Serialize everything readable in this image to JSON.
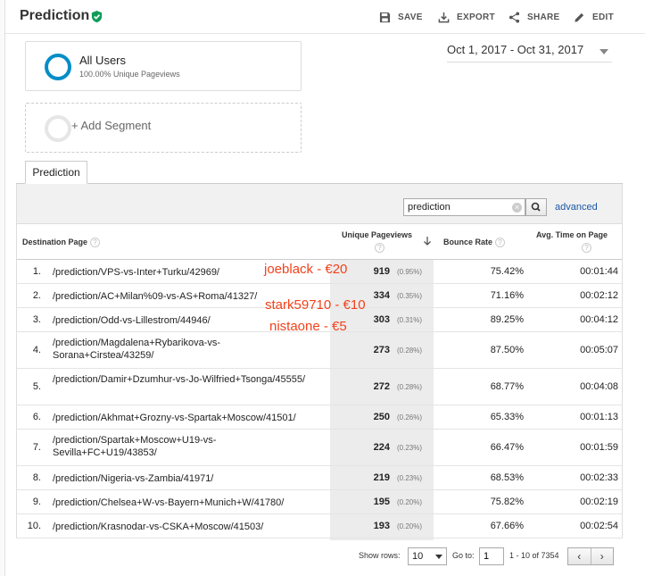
{
  "header": {
    "title": "Prediction",
    "actions": [
      {
        "label": "SAVE",
        "icon": "save-icon"
      },
      {
        "label": "EXPORT",
        "icon": "export-icon"
      },
      {
        "label": "SHARE",
        "icon": "share-icon"
      },
      {
        "label": "EDIT",
        "icon": "edit-icon"
      }
    ]
  },
  "segments": {
    "active_name": "All Users",
    "active_sub": "100.00% Unique Pageviews",
    "add_label": "+ Add Segment"
  },
  "date_range": "Oct 1, 2017 - Oct 31, 2017",
  "tab": "Prediction",
  "filter": {
    "query": "prediction",
    "advanced_label": "advanced"
  },
  "table": {
    "headers": {
      "page": "Destination Page",
      "pageviews": "Unique Pageviews",
      "bounce": "Bounce Rate",
      "time": "Avg. Time on Page"
    },
    "rows": [
      {
        "idx": "1.",
        "page": "/prediction/VPS-vs-Inter+Turku/42969/",
        "pv": "919",
        "pct": "(0.95%)",
        "bounce": "75.42%",
        "time": "00:01:44"
      },
      {
        "idx": "2.",
        "page": "/prediction/AC+Milan%09-vs-AS+Roma/41327/",
        "pv": "334",
        "pct": "(0.35%)",
        "bounce": "71.16%",
        "time": "00:02:12"
      },
      {
        "idx": "3.",
        "page": "/prediction/Odd-vs-Lillestrom/44946/",
        "pv": "303",
        "pct": "(0.31%)",
        "bounce": "89.25%",
        "time": "00:04:12"
      },
      {
        "idx": "4.",
        "page": "/prediction/Magdalena+Rybarikova-vs-Sorana+Cirstea/43259/",
        "pv": "273",
        "pct": "(0.28%)",
        "bounce": "87.50%",
        "time": "00:05:07"
      },
      {
        "idx": "5.",
        "page": "/prediction/Damir+Dzumhur-vs-Jo-Wilfried+Tsonga/45555/",
        "pv": "272",
        "pct": "(0.28%)",
        "bounce": "68.77%",
        "time": "00:04:08"
      },
      {
        "idx": "6.",
        "page": "/prediction/Akhmat+Grozny-vs-Spartak+Moscow/41501/",
        "pv": "250",
        "pct": "(0.26%)",
        "bounce": "65.33%",
        "time": "00:01:13"
      },
      {
        "idx": "7.",
        "page": "/prediction/Spartak+Moscow+U19-vs-Sevilla+FC+U19/43853/",
        "pv": "224",
        "pct": "(0.23%)",
        "bounce": "66.47%",
        "time": "00:01:59"
      },
      {
        "idx": "8.",
        "page": "/prediction/Nigeria-vs-Zambia/41971/",
        "pv": "219",
        "pct": "(0.23%)",
        "bounce": "68.53%",
        "time": "00:02:33"
      },
      {
        "idx": "9.",
        "page": "/prediction/Chelsea+W-vs-Bayern+Munich+W/41780/",
        "pv": "195",
        "pct": "(0.20%)",
        "bounce": "75.82%",
        "time": "00:02:19"
      },
      {
        "idx": "10.",
        "page": "/prediction/Krasnodar-vs-CSKA+Moscow/41503/",
        "pv": "193",
        "pct": "(0.20%)",
        "bounce": "67.66%",
        "time": "00:02:54"
      }
    ]
  },
  "annotations": [
    "joeblack - €20",
    "stark59710  - €10",
    "nistaone - €5"
  ],
  "footer": {
    "show_rows_label": "Show rows:",
    "show_rows_value": "10",
    "goto_label": "Go to:",
    "goto_value": "1",
    "range_text": "1 - 10 of 7354"
  },
  "colors": {
    "accent_blue": "#058dc7",
    "verified_green": "#0f9d58",
    "annotation_red": "#f2421b",
    "link_blue": "#1a57a6"
  }
}
